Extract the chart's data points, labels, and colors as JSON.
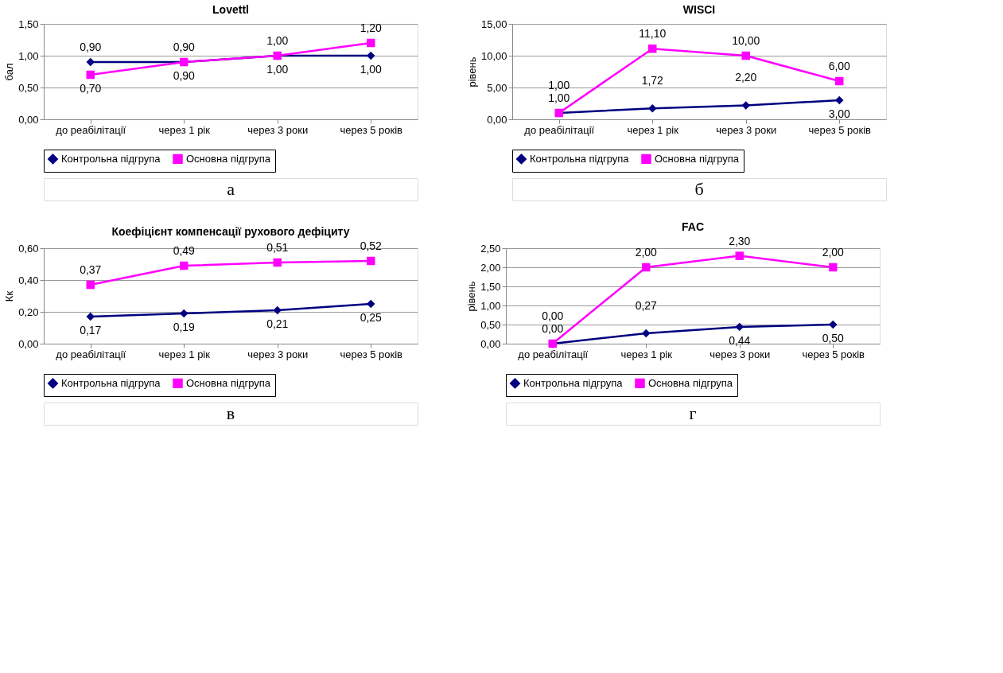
{
  "chart_data": [
    {
      "type": "line",
      "title": "Lovettl",
      "ylabel": "бал",
      "categories": [
        "до реабілітації",
        "через 1 рік",
        "через 3 роки",
        "через 5 років"
      ],
      "ylim": [
        0,
        1.5
      ],
      "yticks": [
        {
          "value": 0,
          "label": "0,00"
        },
        {
          "value": 0.5,
          "label": "0,50"
        },
        {
          "value": 1,
          "label": "1,00"
        },
        {
          "value": 1.5,
          "label": "1,50"
        }
      ],
      "grid": "y",
      "legend": "bottom",
      "annotations": [
        "а"
      ],
      "series": [
        {
          "name": "Контрольна підгрупа",
          "color": "#000080",
          "marker": "diamond",
          "values": [
            0.9,
            0.9,
            1.0,
            1.0
          ],
          "value_labels": [
            "0,90",
            "0,90",
            "1,00",
            "1,00"
          ]
        },
        {
          "name": "Основна підгрупа",
          "color": "#ff00ff",
          "marker": "square",
          "values": [
            0.7,
            0.9,
            1.0,
            1.2
          ],
          "value_labels": [
            "0,70",
            "0,90",
            "1,00",
            "1,20"
          ]
        }
      ]
    },
    {
      "type": "line",
      "title": "WISCI",
      "ylabel": "рівень",
      "categories": [
        "до реабілітації",
        "через 1 рік",
        "через 3 роки",
        "через 5 років"
      ],
      "ylim": [
        0,
        15
      ],
      "yticks": [
        {
          "value": 0,
          "label": "0,00"
        },
        {
          "value": 5,
          "label": "5,00"
        },
        {
          "value": 10,
          "label": "10,00"
        },
        {
          "value": 15,
          "label": "15,00"
        }
      ],
      "grid": "y",
      "legend": "bottom",
      "annotations": [
        "б"
      ],
      "series": [
        {
          "name": "Контрольна підгрупа",
          "color": "#000080",
          "marker": "diamond",
          "values": [
            1.0,
            1.72,
            2.2,
            3.0
          ],
          "value_labels": [
            "1,00",
            "1,72",
            "2,20",
            "3,00"
          ]
        },
        {
          "name": "Основна підгрупа",
          "color": "#ff00ff",
          "marker": "square",
          "values": [
            1.0,
            11.1,
            10.0,
            6.0
          ],
          "value_labels": [
            "1,00",
            "11,10",
            "10,00",
            "6,00"
          ]
        }
      ]
    },
    {
      "type": "line",
      "title": "Коефіцієнт компенсації рухового дефіциту",
      "ylabel": "Кк",
      "categories": [
        "до реабілітації",
        "через 1 рік",
        "через 3 роки",
        "через 5 років"
      ],
      "ylim": [
        0,
        0.6
      ],
      "yticks": [
        {
          "value": 0,
          "label": "0,00"
        },
        {
          "value": 0.2,
          "label": "0,20"
        },
        {
          "value": 0.4,
          "label": "0,40"
        },
        {
          "value": 0.6,
          "label": "0,60"
        }
      ],
      "grid": "y",
      "legend": "bottom",
      "annotations": [
        "в"
      ],
      "series": [
        {
          "name": "Контрольна підгрупа",
          "color": "#000080",
          "marker": "diamond",
          "values": [
            0.17,
            0.19,
            0.21,
            0.25
          ],
          "value_labels": [
            "0,17",
            "0,19",
            "0,21",
            "0,25"
          ]
        },
        {
          "name": "Основна підгрупа",
          "color": "#ff00ff",
          "marker": "square",
          "values": [
            0.37,
            0.49,
            0.51,
            0.52
          ],
          "value_labels": [
            "0,37",
            "0,49",
            "0,51",
            "0,52"
          ]
        }
      ]
    },
    {
      "type": "line",
      "title": "FAC",
      "ylabel": "рівень",
      "categories": [
        "до реабілітації",
        "через 1 рік",
        "через 3 роки",
        "через 5 років"
      ],
      "ylim": [
        0,
        2.5
      ],
      "yticks": [
        {
          "value": 0,
          "label": "0,00"
        },
        {
          "value": 0.5,
          "label": "0,50"
        },
        {
          "value": 1,
          "label": "1,00"
        },
        {
          "value": 1.5,
          "label": "1,50"
        },
        {
          "value": 2,
          "label": "2,00"
        },
        {
          "value": 2.5,
          "label": "2,50"
        }
      ],
      "grid": "y",
      "legend": "bottom",
      "annotations": [
        "г"
      ],
      "series": [
        {
          "name": "Контрольна підгрупа",
          "color": "#000080",
          "marker": "diamond",
          "values": [
            0.0,
            0.27,
            0.44,
            0.5
          ],
          "value_labels": [
            "0,00",
            "0,27",
            "0,44",
            "0,50"
          ]
        },
        {
          "name": "Основна підгрупа",
          "color": "#ff00ff",
          "marker": "square",
          "values": [
            0.0,
            2.0,
            2.3,
            2.0
          ],
          "value_labels": [
            "0,00",
            "2,00",
            "2,30",
            "2,00"
          ]
        }
      ]
    }
  ]
}
